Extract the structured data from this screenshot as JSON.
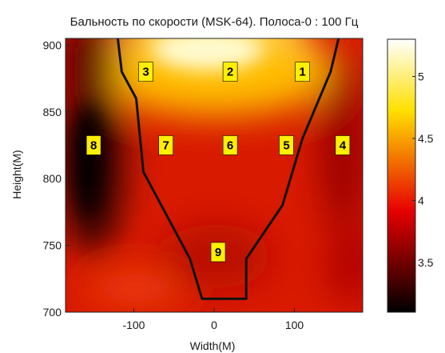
{
  "chart_data": {
    "type": "heatmap",
    "title": "Бальность по скорости (MSK-64). Полоса-0 : 100 Гц",
    "xlabel": "Width(M)",
    "ylabel": "Height(M)",
    "xlim": [
      -185,
      185
    ],
    "ylim": [
      700,
      905
    ],
    "xticks": [
      "-100",
      "0",
      "100"
    ],
    "yticks": [
      "700",
      "750",
      "800",
      "850",
      "900"
    ],
    "colorbar": {
      "range": [
        3.1,
        5.3
      ],
      "ticks": [
        "3.5",
        "4",
        "4.5",
        "5"
      ],
      "colormap": "hot"
    },
    "markers": [
      {
        "label": "1",
        "x": 110,
        "y": 880
      },
      {
        "label": "2",
        "x": 20,
        "y": 880
      },
      {
        "label": "3",
        "x": -85,
        "y": 880
      },
      {
        "label": "4",
        "x": 160,
        "y": 825
      },
      {
        "label": "5",
        "x": 90,
        "y": 825
      },
      {
        "label": "6",
        "x": 20,
        "y": 825
      },
      {
        "label": "7",
        "x": -60,
        "y": 825
      },
      {
        "label": "8",
        "x": -150,
        "y": 825
      },
      {
        "label": "9",
        "x": 5,
        "y": 745
      }
    ],
    "boundary": [
      {
        "x": -120,
        "y": 905
      },
      {
        "x": -115,
        "y": 880
      },
      {
        "x": -97,
        "y": 860
      },
      {
        "x": -88,
        "y": 805
      },
      {
        "x": -30,
        "y": 740
      },
      {
        "x": -15,
        "y": 710
      },
      {
        "x": 40,
        "y": 710
      },
      {
        "x": 40,
        "y": 740
      },
      {
        "x": 85,
        "y": 780
      },
      {
        "x": 110,
        "y": 830
      },
      {
        "x": 145,
        "y": 880
      },
      {
        "x": 155,
        "y": 905
      }
    ]
  }
}
